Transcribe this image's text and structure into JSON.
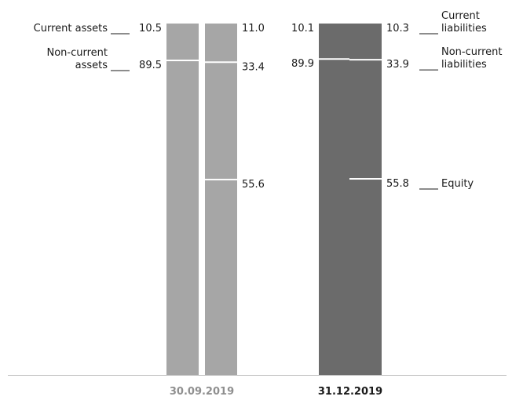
{
  "chart_data": {
    "type": "bar",
    "stacked": true,
    "unit": "%",
    "ylim": [
      0,
      100
    ],
    "categories": [
      "30.09.2019",
      "31.12.2019"
    ],
    "category_highlight": [
      false,
      true
    ],
    "colors": {
      "previous": "#a6a6a6",
      "current": "#6b6b6b",
      "axis": "#bcbcbc",
      "xlabel_previous": "#8f8f8f",
      "xlabel_current": "#1a1a1a"
    },
    "series": [
      {
        "name": "Current assets",
        "side": "assets",
        "values": [
          10.5,
          10.1
        ]
      },
      {
        "name": "Non-current assets",
        "side": "assets",
        "values": [
          89.5,
          89.9
        ]
      },
      {
        "name": "Current liabilities",
        "side": "liabilities",
        "values": [
          11.0,
          10.3
        ]
      },
      {
        "name": "Non-current liabilities",
        "side": "liabilities",
        "values": [
          33.4,
          33.9
        ]
      },
      {
        "name": "Equity",
        "side": "liabilities",
        "values": [
          55.6,
          55.8
        ]
      }
    ],
    "left_annotations": [
      {
        "series": "Current assets",
        "lines": [
          "Current assets"
        ]
      },
      {
        "series": "Non-current assets",
        "lines": [
          "Non-current",
          "assets"
        ]
      }
    ],
    "right_annotations": [
      {
        "series": "Current liabilities",
        "lines": [
          "Current",
          "liabilities"
        ]
      },
      {
        "series": "Non-current liabilities",
        "lines": [
          "Non-current",
          "liabilities"
        ]
      },
      {
        "series": "Equity",
        "lines": [
          "Equity"
        ]
      }
    ]
  }
}
